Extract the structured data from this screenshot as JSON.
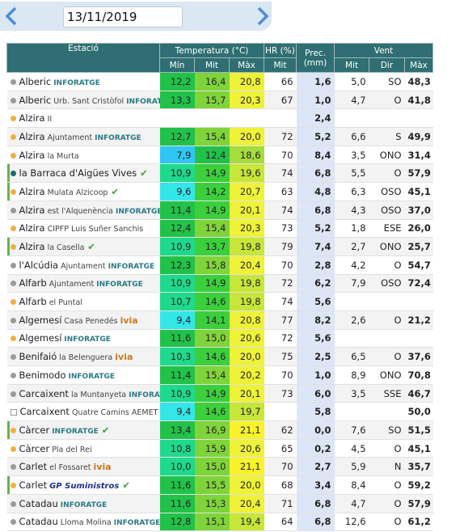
{
  "header": {
    "date": "13/11/2019"
  },
  "table": {
    "group_headers": [
      "Estació",
      "Temperatura (°C)",
      "HR (%)",
      "Prec. (mm)",
      "Vent"
    ],
    "sub_headers": [
      "Mín",
      "Mit",
      "Màx",
      "Mit",
      "Mit",
      "Dir",
      "Màx"
    ],
    "rows": [
      {
        "marker": "gray",
        "name": "Alberic",
        "source": "INFORATGE",
        "cells": [
          "12,2",
          "16,4",
          "20,8",
          "66",
          "1,6",
          "5,0",
          "SO",
          "48,3"
        ]
      },
      {
        "marker": "gray",
        "name": "Alberic",
        "detail": "Urb. Sant Cristòfol",
        "source": "INFORATGE",
        "cells": [
          "13,3",
          "15,7",
          "20,3",
          "67",
          "1,0",
          "4,7",
          "O",
          "41,8"
        ]
      },
      {
        "marker": "orange",
        "name": "Alzira",
        "detail": "II",
        "cells": [
          null,
          null,
          null,
          null,
          "2,4",
          null,
          null,
          null
        ]
      },
      {
        "marker": "orange",
        "name": "Alzira",
        "detail": "Ajuntament",
        "source": "INFORATGE",
        "cells": [
          "12,7",
          "15,4",
          "20,0",
          "72",
          "5,2",
          "6,6",
          "S",
          "49,9"
        ]
      },
      {
        "marker": "orange",
        "name": "Alzira",
        "detail": "la Murta",
        "cells": [
          "7,9",
          "12,4",
          "18,6",
          "70",
          "8,4",
          "3,5",
          "ONO",
          "31,4"
        ]
      },
      {
        "marker": "teal",
        "name": "la Barraca d'Aigües Vives",
        "check": true,
        "cells": [
          "10,9",
          "14,9",
          "19,6",
          "74",
          "6,8",
          "5,5",
          "O",
          "57,9"
        ]
      },
      {
        "marker": "orange",
        "name": "Alzira",
        "detail": "Mulata Alzicoop",
        "check": true,
        "cells": [
          "9,6",
          "14,2",
          "20,7",
          "63",
          "4,8",
          "6,3",
          "OSO",
          "45,1"
        ]
      },
      {
        "marker": "gray",
        "name": "Alzira",
        "detail": "est l'Alquenència",
        "source": "INFORATGE",
        "cells": [
          "11,4",
          "14,9",
          "20,1",
          "74",
          "6,8",
          "4,3",
          "OSO",
          "37,0"
        ]
      },
      {
        "marker": "orange",
        "name": "Alzira",
        "detail": "CIPFP Luis Suñer Sanchis",
        "cells": [
          "12,4",
          "15,4",
          "20,3",
          "73",
          "5,2",
          "1,8",
          "ESE",
          "26,0"
        ]
      },
      {
        "marker": "orange",
        "name": "Alzira",
        "detail": "la Casella",
        "check": true,
        "cells": [
          "10,9",
          "13,7",
          "19,8",
          "79",
          "7,4",
          "2,7",
          "ONO",
          "25,7"
        ]
      },
      {
        "marker": "gray",
        "name": "l'Alcúdia",
        "detail": "Ajuntament",
        "source": "INFORATGE",
        "cells": [
          "12,3",
          "15,8",
          "20,4",
          "70",
          "2,8",
          "4,2",
          "O",
          "54,7"
        ]
      },
      {
        "marker": "gray",
        "name": "Alfarb",
        "detail": "Ajuntament",
        "source": "INFORATGE",
        "cells": [
          "10,9",
          "14,9",
          "19,8",
          "72",
          "6,2",
          "7,9",
          "OSO",
          "72,4"
        ]
      },
      {
        "marker": "orange",
        "name": "Alfarb",
        "detail": "el Puntal",
        "cells": [
          "10,7",
          "14,6",
          "19,8",
          "74",
          "5,6",
          null,
          null,
          null
        ]
      },
      {
        "marker": "gray",
        "name": "Algemesí",
        "detail": "Casa Penedés",
        "source": "ivia",
        "cells": [
          "9,4",
          "14,1",
          "20,8",
          "77",
          "8,2",
          "2,6",
          "O",
          "21,2"
        ]
      },
      {
        "marker": "orange",
        "name": "Algemesí",
        "source": "INFORATGE",
        "cells": [
          "11,6",
          "15,0",
          "20,6",
          "72",
          "5,6",
          null,
          null,
          null
        ]
      },
      {
        "marker": "gray",
        "name": "Benifaió",
        "detail": "la Belenguera",
        "source": "ivia",
        "cells": [
          "10,3",
          "14,6",
          "20,0",
          "75",
          "2,5",
          "6,5",
          "O",
          "37,6"
        ]
      },
      {
        "marker": "gray",
        "name": "Benimodo",
        "source": "INFORATGE",
        "cells": [
          "11,4",
          "15,4",
          "20,2",
          "70",
          "1,0",
          "8,9",
          "ONO",
          "70,8"
        ]
      },
      {
        "marker": "gray",
        "name": "Carcaixent",
        "detail": "la Muntanyeta",
        "source": "INFORATGE",
        "cells": [
          "10,9",
          "14,9",
          "20,1",
          "73",
          "6,0",
          "3,5",
          "SSE",
          "46,7"
        ]
      },
      {
        "marker": "square",
        "name": "Carcaixent",
        "detail": "Quatre Camins AEMET",
        "cells": [
          "9,4",
          "14,6",
          "19,7",
          null,
          "5,8",
          null,
          null,
          "50,0"
        ]
      },
      {
        "marker": "orange",
        "name": "Càrcer",
        "source": "INFORATGE",
        "check": true,
        "cells": [
          "13,4",
          "16,9",
          "21,1",
          "62",
          "0,0",
          "7,6",
          "SO",
          "51,5"
        ]
      },
      {
        "marker": "orange",
        "name": "Càrcer",
        "detail": "Pla del Rei",
        "cells": [
          "10,8",
          "15,9",
          "20,6",
          "65",
          "0,2",
          "4,5",
          "O",
          "45,1"
        ]
      },
      {
        "marker": "gray",
        "name": "Carlet",
        "detail": "el Fossaret",
        "source": "ivia",
        "cells": [
          "10,0",
          "15,0",
          "21,1",
          "70",
          "2,7",
          "5,9",
          "N",
          "35,7"
        ]
      },
      {
        "marker": "orange",
        "name": "Carlet",
        "source": "GP Suministros",
        "check": true,
        "cells": [
          "11,6",
          "15,5",
          "20,0",
          "68",
          "3,4",
          "8,4",
          "O",
          "59,2"
        ]
      },
      {
        "marker": "gray",
        "name": "Catadau",
        "source": "INFORATGE",
        "cells": [
          "11,6",
          "15,3",
          "20,4",
          "71",
          "6,8",
          "4,7",
          "O",
          "57,9"
        ]
      },
      {
        "marker": "gray",
        "name": "Catadau",
        "detail": "Lloma Molina",
        "source": "INFORATGE",
        "cells": [
          "12,8",
          "15,1",
          "19,4",
          "64",
          "6,8",
          "12,6",
          "O",
          "61,2"
        ]
      }
    ]
  }
}
